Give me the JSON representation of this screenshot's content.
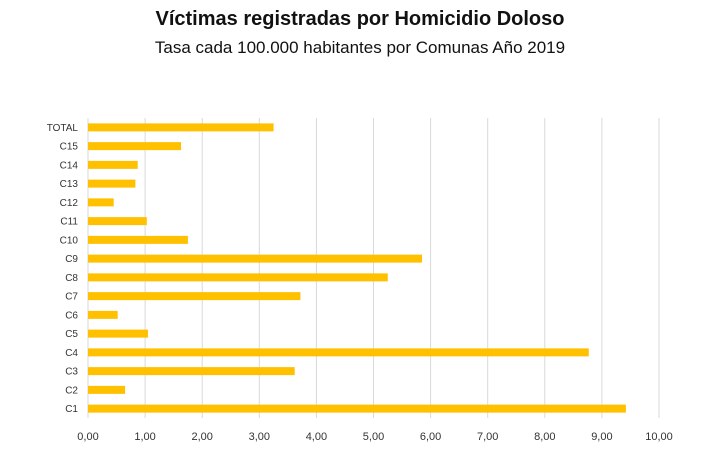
{
  "chart_data": {
    "type": "bar",
    "orientation": "horizontal",
    "title": "Víctimas registradas por Homicidio Doloso",
    "subtitle": "Tasa cada 100.000 habitantes por Comunas Año 2019",
    "categories": [
      "TOTAL",
      "C15",
      "C14",
      "C13",
      "C12",
      "C11",
      "C10",
      "C9",
      "C8",
      "C7",
      "C6",
      "C5",
      "C4",
      "C3",
      "C2",
      "C1"
    ],
    "values": [
      3.25,
      1.63,
      0.87,
      0.83,
      0.45,
      1.03,
      1.75,
      5.85,
      5.25,
      3.72,
      0.52,
      1.05,
      8.77,
      3.62,
      0.65,
      9.42
    ],
    "xlim": [
      0,
      10
    ],
    "xticks": [
      "0,00",
      "1,00",
      "2,00",
      "3,00",
      "4,00",
      "5,00",
      "6,00",
      "7,00",
      "8,00",
      "9,00",
      "10,00"
    ],
    "xlabel": "",
    "ylabel": "",
    "grid": "vertical",
    "legend": "none",
    "bar_color": "#ffc000"
  }
}
